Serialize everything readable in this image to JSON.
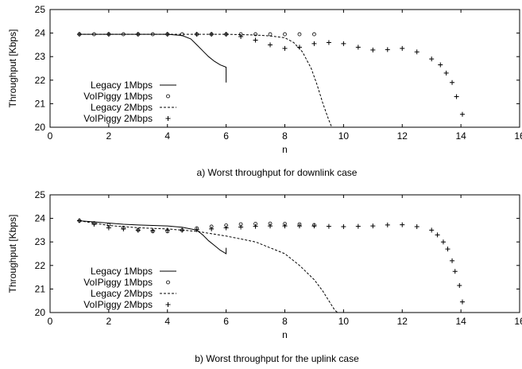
{
  "chart_data": [
    {
      "type": "line",
      "caption": "a) Worst throughput for downlink case",
      "xlabel": "n",
      "ylabel": "Throughput [Kbps]",
      "xlim": [
        0,
        16
      ],
      "ylim": [
        20,
        25
      ],
      "xticks": [
        "0",
        "2",
        "4",
        "6",
        "8",
        "10",
        "12",
        "14",
        "16"
      ],
      "yticks": [
        "20",
        "21",
        "22",
        "23",
        "24",
        "25"
      ],
      "grid": false,
      "legend_position": "bottom-left",
      "series": [
        {
          "name": "Legacy 1Mbps",
          "style": "solid",
          "x": [
            1,
            2,
            3,
            4,
            4.5,
            4.8,
            5,
            5.2,
            5.4,
            5.6,
            5.8,
            6,
            6,
            6
          ],
          "y": [
            23.95,
            23.95,
            23.95,
            23.95,
            23.9,
            23.75,
            23.5,
            23.25,
            23.0,
            22.8,
            22.65,
            22.55,
            22.3,
            21.9
          ]
        },
        {
          "name": "VoIPiggy 1Mbps",
          "style": "circles",
          "x": [
            1,
            1.5,
            2,
            2.5,
            3,
            3.5,
            4,
            4.5,
            5,
            5.5,
            6,
            6.5,
            7,
            7.5,
            8,
            8.5,
            9
          ],
          "y": [
            23.95,
            23.95,
            23.95,
            23.95,
            23.95,
            23.95,
            23.95,
            23.95,
            23.95,
            23.95,
            23.95,
            23.95,
            23.95,
            23.95,
            23.95,
            23.95,
            23.95
          ]
        },
        {
          "name": "Legacy 2Mbps",
          "style": "dashed",
          "x": [
            1,
            2,
            3,
            4,
            5,
            6,
            7,
            7.5,
            8,
            8.3,
            8.6,
            8.9,
            9.1,
            9.3,
            9.5,
            9.6
          ],
          "y": [
            23.95,
            23.95,
            23.95,
            23.95,
            23.95,
            23.95,
            23.92,
            23.88,
            23.8,
            23.6,
            23.2,
            22.5,
            21.8,
            21.0,
            20.3,
            20.0
          ]
        },
        {
          "name": "VoIPiggy 2Mbps",
          "style": "plus",
          "x": [
            1,
            2,
            3,
            4,
            5,
            5.5,
            6,
            6.5,
            7,
            7.5,
            8,
            8.5,
            9,
            9.5,
            10,
            10.5,
            11,
            11.5,
            12,
            12.5,
            13,
            13.3,
            13.5,
            13.7,
            13.85,
            14.05
          ],
          "y": [
            23.95,
            23.95,
            23.95,
            23.95,
            23.95,
            23.95,
            23.95,
            23.85,
            23.7,
            23.5,
            23.35,
            23.4,
            23.55,
            23.6,
            23.55,
            23.4,
            23.28,
            23.3,
            23.35,
            23.2,
            22.9,
            22.65,
            22.3,
            21.9,
            21.3,
            20.55
          ]
        }
      ]
    },
    {
      "type": "line",
      "caption": "b) Worst throughput for the uplink case",
      "xlabel": "n",
      "ylabel": "Throughput [Kbps]",
      "xlim": [
        0,
        16
      ],
      "ylim": [
        20,
        25
      ],
      "xticks": [
        "0",
        "2",
        "4",
        "6",
        "8",
        "10",
        "12",
        "14",
        "16"
      ],
      "yticks": [
        "20",
        "21",
        "22",
        "23",
        "24",
        "25"
      ],
      "grid": false,
      "legend_position": "bottom-left",
      "series": [
        {
          "name": "Legacy 1Mbps",
          "style": "solid",
          "x": [
            1,
            1.5,
            2,
            2.5,
            3,
            3.5,
            4,
            4.5,
            5,
            5.2,
            5.4,
            5.6,
            5.8,
            6,
            6
          ],
          "y": [
            23.9,
            23.85,
            23.8,
            23.75,
            23.72,
            23.7,
            23.68,
            23.62,
            23.5,
            23.3,
            23.05,
            22.85,
            22.65,
            22.5,
            22.75
          ]
        },
        {
          "name": "VoIPiggy 1Mbps",
          "style": "circles",
          "x": [
            1,
            1.5,
            2,
            2.5,
            3,
            3.5,
            4,
            4.5,
            5,
            5.5,
            6,
            6.5,
            7,
            7.5,
            8,
            8.5,
            9
          ],
          "y": [
            23.9,
            23.8,
            23.72,
            23.6,
            23.5,
            23.45,
            23.45,
            23.5,
            23.58,
            23.65,
            23.7,
            23.75,
            23.77,
            23.78,
            23.77,
            23.75,
            23.72
          ]
        },
        {
          "name": "Legacy 2Mbps",
          "style": "dashed",
          "x": [
            1,
            2,
            3,
            4,
            5,
            6,
            7,
            8,
            8.5,
            9,
            9.3,
            9.5,
            9.7,
            9.8
          ],
          "y": [
            23.9,
            23.7,
            23.6,
            23.55,
            23.45,
            23.25,
            23.0,
            22.5,
            22.0,
            21.4,
            20.9,
            20.5,
            20.1,
            20.0
          ]
        },
        {
          "name": "VoIPiggy 2Mbps",
          "style": "plus",
          "x": [
            1,
            1.5,
            2,
            2.5,
            3,
            3.5,
            4,
            4.5,
            5,
            5.5,
            6,
            6.5,
            7,
            7.5,
            8,
            8.5,
            9,
            9.5,
            10,
            10.5,
            11,
            11.5,
            12,
            12.5,
            13,
            13.2,
            13.4,
            13.55,
            13.7,
            13.8,
            13.95,
            14.05
          ],
          "y": [
            23.9,
            23.75,
            23.6,
            23.55,
            23.5,
            23.48,
            23.5,
            23.5,
            23.52,
            23.55,
            23.6,
            23.63,
            23.66,
            23.68,
            23.68,
            23.68,
            23.68,
            23.66,
            23.65,
            23.66,
            23.68,
            23.72,
            23.73,
            23.65,
            23.5,
            23.3,
            23.0,
            22.7,
            22.2,
            21.75,
            21.15,
            20.45
          ]
        }
      ]
    }
  ]
}
